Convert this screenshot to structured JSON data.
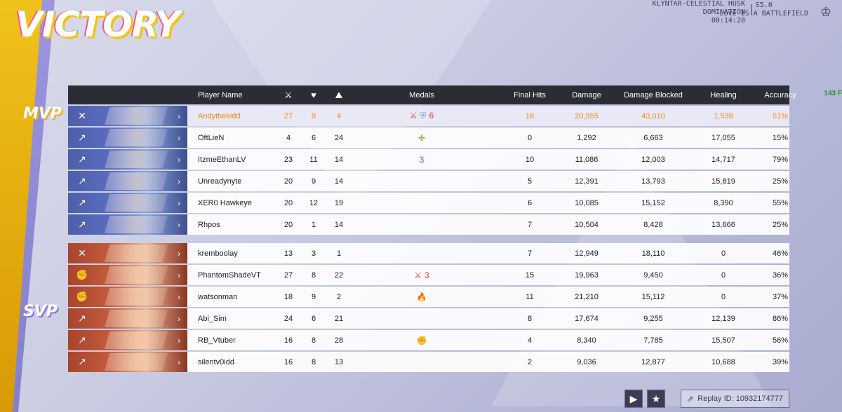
{
  "title": "VICTORY",
  "match": {
    "map": "KLYNTAR-CELESTIAL HUSK",
    "mode": "DOMINATION",
    "time": "00:14:28",
    "season": "S5.0",
    "season_name": "LOVE IS A BATTLEFIELD",
    "side_points": "143 F"
  },
  "tags": {
    "mvp": "MVP",
    "svp": "SVP"
  },
  "headers": {
    "player_name": "Player Name",
    "kills_icon": "crossed-swords-icon",
    "deaths_icon": "broken-heart-icon",
    "assists_icon": "assist-icon",
    "medals": "Medals",
    "final_hits": "Final Hits",
    "damage": "Damage",
    "damage_blocked": "Damage Blocked",
    "healing": "Healing",
    "accuracy": "Accuracy"
  },
  "team_blue": [
    {
      "name": "Andythekidd",
      "k": "27",
      "d": "9",
      "a": "4",
      "medals": [
        "⚔",
        "⛨",
        "6"
      ],
      "medal_colors": [
        "m-red",
        "m-blue",
        "m-red"
      ],
      "fh": "18",
      "dmg": "20,955",
      "blk": "43,010",
      "heal": "1,538",
      "acc": "51%",
      "role": "✕",
      "mvp": true
    },
    {
      "name": "OftLieN",
      "k": "4",
      "d": "6",
      "a": "24",
      "medals": [
        "✚"
      ],
      "medal_colors": [
        "m-green"
      ],
      "fh": "0",
      "dmg": "1,292",
      "blk": "6,663",
      "heal": "17,055",
      "acc": "15%",
      "role": "↗"
    },
    {
      "name": "ItzmeEthanLV",
      "k": "23",
      "d": "11",
      "a": "14",
      "medals": [
        "3"
      ],
      "medal_colors": [
        "m-red"
      ],
      "fh": "10",
      "dmg": "11,086",
      "blk": "12,003",
      "heal": "14,717",
      "acc": "79%",
      "role": "↗"
    },
    {
      "name": "Unreadynyte",
      "k": "20",
      "d": "9",
      "a": "14",
      "medals": [],
      "medal_colors": [],
      "fh": "5",
      "dmg": "12,391",
      "blk": "13,793",
      "heal": "15,819",
      "acc": "25%",
      "role": "↗"
    },
    {
      "name": "XER0 Hawkeye",
      "k": "20",
      "d": "12",
      "a": "19",
      "medals": [],
      "medal_colors": [],
      "fh": "6",
      "dmg": "10,085",
      "blk": "15,152",
      "heal": "8,390",
      "acc": "55%",
      "role": "↗"
    },
    {
      "name": "Rhpos",
      "k": "20",
      "d": "1",
      "a": "14",
      "medals": [],
      "medal_colors": [],
      "fh": "7",
      "dmg": "10,504",
      "blk": "8,428",
      "heal": "13,666",
      "acc": "25%",
      "role": "↗"
    }
  ],
  "team_red": [
    {
      "name": "kremboolay",
      "k": "13",
      "d": "3",
      "a": "1",
      "medals": [],
      "medal_colors": [],
      "fh": "7",
      "dmg": "12,949",
      "blk": "18,110",
      "heal": "0",
      "acc": "46%",
      "role": "✕"
    },
    {
      "name": "PhantomShadeVT",
      "k": "27",
      "d": "8",
      "a": "22",
      "medals": [
        "⚔",
        "3"
      ],
      "medal_colors": [
        "m-red",
        "m-red"
      ],
      "fh": "15",
      "dmg": "19,963",
      "blk": "9,450",
      "heal": "0",
      "acc": "36%",
      "role": "✊"
    },
    {
      "name": "watsonman",
      "k": "18",
      "d": "9",
      "a": "2",
      "medals": [
        "🔥"
      ],
      "medal_colors": [
        "m-orange"
      ],
      "fh": "11",
      "dmg": "21,210",
      "blk": "15,112",
      "heal": "0",
      "acc": "37%",
      "role": "✊"
    },
    {
      "name": "Abi_Sim",
      "k": "24",
      "d": "6",
      "a": "21",
      "medals": [],
      "medal_colors": [],
      "fh": "8",
      "dmg": "17,674",
      "blk": "9,255",
      "heal": "12,139",
      "acc": "86%",
      "role": "↗"
    },
    {
      "name": "RB_Vtuber",
      "k": "16",
      "d": "8",
      "a": "28",
      "medals": [
        "✊"
      ],
      "medal_colors": [
        "m-yellow"
      ],
      "fh": "4",
      "dmg": "8,340",
      "blk": "7,785",
      "heal": "15,507",
      "acc": "56%",
      "role": "↗"
    },
    {
      "name": "silentv0idd",
      "k": "16",
      "d": "8",
      "a": "13",
      "medals": [],
      "medal_colors": [],
      "fh": "2",
      "dmg": "9,036",
      "blk": "12,877",
      "heal": "10,688",
      "acc": "39%",
      "role": "↗"
    }
  ],
  "bottom": {
    "play_icon": "play-icon",
    "star_icon": "star-icon",
    "replay_label": "Replay ID: 10932174777"
  },
  "colors": {
    "mvp_text": "#ef8a1a",
    "header_bg": "#2b2c35",
    "blue_team": "#5a6cc0",
    "red_team": "#c35a3b"
  }
}
